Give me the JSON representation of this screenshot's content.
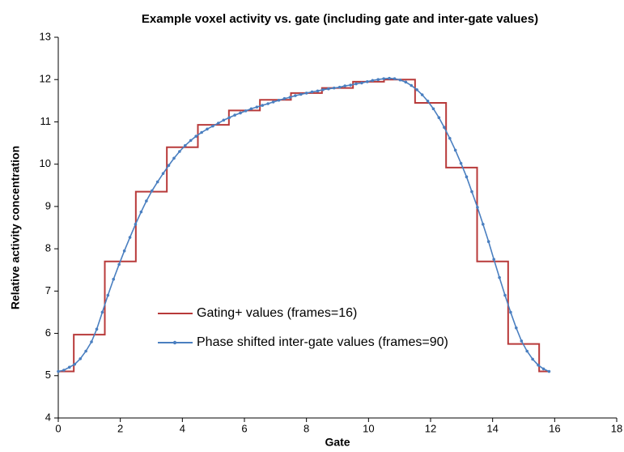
{
  "chart_data": {
    "type": "line",
    "title": "Example voxel activity vs. gate (including gate and inter-gate values)",
    "xlabel": "Gate",
    "ylabel": "Relative activity concentration",
    "xlim": [
      0,
      18
    ],
    "xticks": [
      0,
      2,
      4,
      6,
      8,
      10,
      12,
      14,
      16,
      18
    ],
    "ylim": [
      4,
      13
    ],
    "yticks": [
      4,
      5,
      6,
      7,
      8,
      9,
      10,
      11,
      12,
      13
    ],
    "grid": false,
    "legend": "inside-left",
    "series": [
      {
        "name": "Gating+ values (frames=16)",
        "color": "#b83a3a",
        "step": "post",
        "x": [
          0,
          0.5,
          1.5,
          2.5,
          3.5,
          4.5,
          5.5,
          6.5,
          7.5,
          8.5,
          9.5,
          10.5,
          11.5,
          12.5,
          13.5,
          14.5,
          15.5,
          15.82
        ],
        "values": [
          5.1,
          5.97,
          7.7,
          9.35,
          10.4,
          10.93,
          11.27,
          11.52,
          11.68,
          11.8,
          11.95,
          12.0,
          11.45,
          9.92,
          7.7,
          5.75,
          5.1,
          5.1
        ]
      },
      {
        "name": "Phase shifted inter-gate values (frames=90)",
        "color": "#4a7fc0",
        "markers": true,
        "x": [
          0.0,
          0.18,
          0.36,
          0.53,
          0.71,
          0.89,
          1.07,
          1.24,
          1.42,
          1.6,
          1.78,
          1.96,
          2.13,
          2.31,
          2.49,
          2.67,
          2.84,
          3.02,
          3.2,
          3.38,
          3.56,
          3.73,
          3.91,
          4.09,
          4.27,
          4.44,
          4.62,
          4.8,
          4.98,
          5.16,
          5.33,
          5.51,
          5.69,
          5.87,
          6.04,
          6.22,
          6.4,
          6.58,
          6.76,
          6.93,
          7.11,
          7.29,
          7.47,
          7.64,
          7.82,
          8.0,
          8.18,
          8.36,
          8.53,
          8.71,
          8.89,
          9.07,
          9.24,
          9.42,
          9.6,
          9.78,
          9.96,
          10.13,
          10.31,
          10.49,
          10.67,
          10.84,
          11.02,
          11.2,
          11.38,
          11.56,
          11.73,
          11.91,
          12.09,
          12.27,
          12.44,
          12.62,
          12.8,
          12.98,
          13.16,
          13.33,
          13.51,
          13.69,
          13.87,
          14.04,
          14.22,
          14.4,
          14.58,
          14.76,
          14.93,
          15.11,
          15.29,
          15.47,
          15.64,
          15.82
        ],
        "values": [
          5.1,
          5.13,
          5.2,
          5.27,
          5.4,
          5.58,
          5.8,
          6.1,
          6.5,
          6.9,
          7.28,
          7.63,
          7.95,
          8.27,
          8.58,
          8.87,
          9.13,
          9.37,
          9.58,
          9.78,
          9.97,
          10.14,
          10.3,
          10.44,
          10.56,
          10.66,
          10.75,
          10.83,
          10.9,
          10.97,
          11.04,
          11.1,
          11.16,
          11.21,
          11.26,
          11.31,
          11.35,
          11.39,
          11.43,
          11.47,
          11.51,
          11.55,
          11.58,
          11.62,
          11.65,
          11.68,
          11.71,
          11.73,
          11.76,
          11.78,
          11.8,
          11.82,
          11.85,
          11.87,
          11.9,
          11.92,
          11.95,
          11.98,
          12.0,
          12.02,
          12.03,
          12.02,
          11.99,
          11.94,
          11.86,
          11.76,
          11.64,
          11.49,
          11.31,
          11.1,
          10.87,
          10.61,
          10.33,
          10.02,
          9.7,
          9.35,
          8.98,
          8.58,
          8.17,
          7.75,
          7.32,
          6.9,
          6.5,
          6.13,
          5.82,
          5.58,
          5.39,
          5.25,
          5.16,
          5.1
        ]
      }
    ]
  }
}
